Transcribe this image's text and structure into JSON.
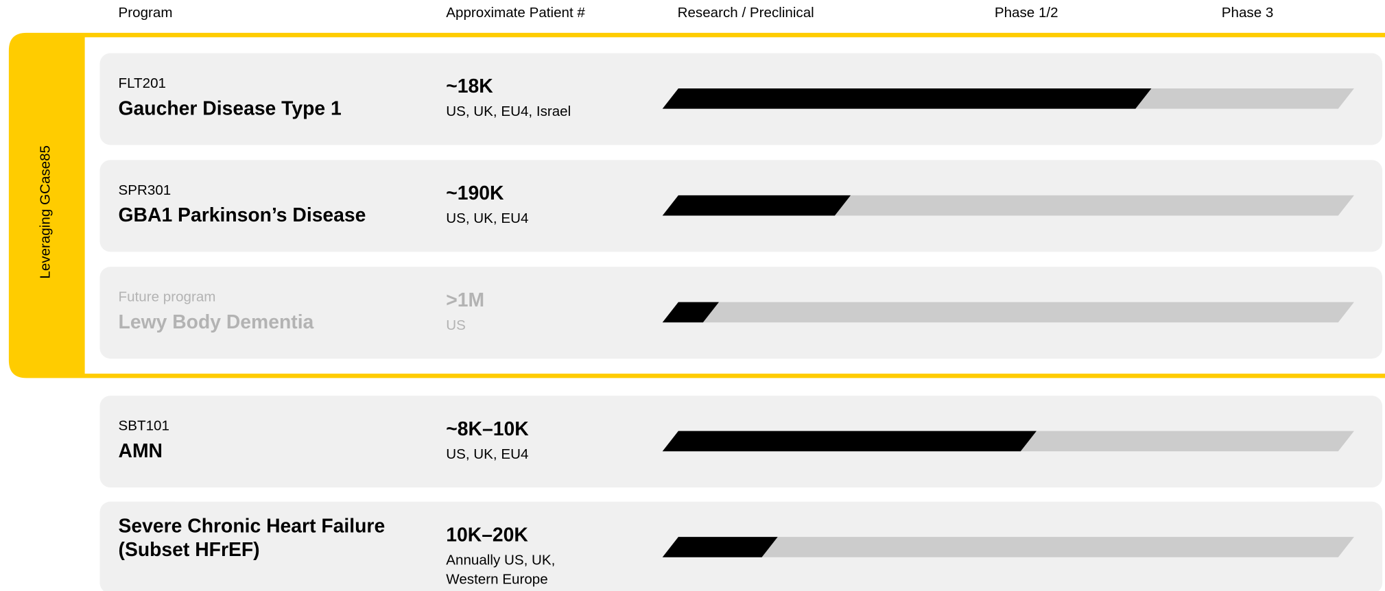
{
  "header": [
    "Program",
    "Approximate Patient #",
    "Research / Preclinical",
    "Phase 1/2",
    "Phase 3"
  ],
  "group_label": "Leveraging GCase85",
  "rows": [
    {
      "code": "FLT201",
      "name": [
        "Gaucher Disease Type 1"
      ],
      "patients": "~18K",
      "region": [
        "US, UK, EU4, Israel"
      ],
      "progress": 0.7,
      "muted": false
    },
    {
      "code": "SPR301",
      "name": [
        "GBA1 Parkinson’s Disease"
      ],
      "patients": "~190K",
      "region": [
        "US, UK, EU4"
      ],
      "progress": 0.255,
      "muted": false
    },
    {
      "code": "Future program",
      "name": [
        "Lewy Body Dementia"
      ],
      "patients": ">1M",
      "region": [
        "US"
      ],
      "progress": 0.06,
      "muted": true
    },
    {
      "code": "SBT101",
      "name": [
        "AMN"
      ],
      "patients": "~8K–10K",
      "region": [
        "US, UK, EU4"
      ],
      "progress": 0.53,
      "muted": false
    },
    {
      "name": [
        "Severe Chronic Heart Failure",
        "(Subset HFrEF)"
      ],
      "patients": "10K–20K",
      "region": [
        "Annually US, UK,",
        "Western Europe"
      ],
      "progress": 0.147,
      "muted": false
    }
  ]
}
